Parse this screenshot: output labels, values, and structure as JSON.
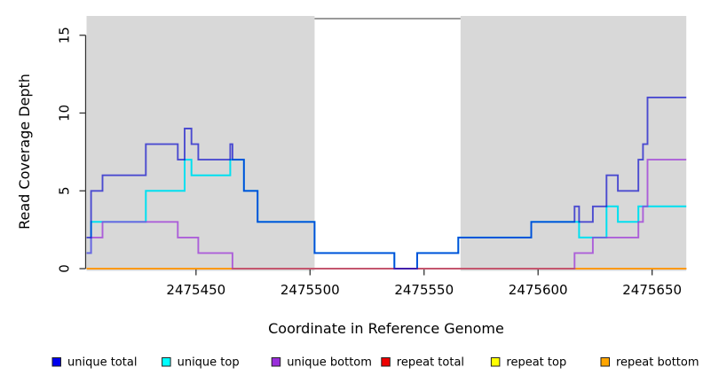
{
  "chart_data": {
    "type": "line",
    "style": "step",
    "xlabel": "Coordinate in Reference Genome",
    "ylabel": "Read Coverage Depth",
    "x_range": [
      2475402,
      2475665
    ],
    "y_range": [
      0,
      16.3
    ],
    "x_ticks": [
      2475450,
      2475500,
      2475550,
      2475600,
      2475650
    ],
    "x_tick_labels": [
      "2475450",
      "2475500",
      "2475550",
      "2475600",
      "2475650"
    ],
    "y_ticks": [
      0,
      5,
      10,
      15
    ],
    "y_tick_labels": [
      "0",
      "5",
      "10",
      "15"
    ],
    "grid": "off",
    "background_color": "#ffffff",
    "shaded_regions": [
      {
        "name": "left-gray-band",
        "from": 2475402,
        "to": 2475502,
        "color": "#d8d8d8"
      },
      {
        "name": "right-gray-band",
        "from": 2475566,
        "to": 2475665,
        "color": "#d8d8d8"
      }
    ],
    "gap_region": {
      "name": "white-gap",
      "from": 2475502,
      "to": 2475566,
      "top_line_color": "#9a9a9a"
    },
    "series": [
      {
        "name": "repeat top",
        "color": "#FFFF00",
        "opacity": 1,
        "width": 1.8,
        "steps": [
          [
            2475402,
            0
          ]
        ]
      },
      {
        "name": "repeat total",
        "color": "#DD2222",
        "opacity": 1,
        "width": 1.8,
        "steps": [
          [
            2475402,
            0
          ]
        ]
      },
      {
        "name": "repeat bottom",
        "color": "#FF9912",
        "opacity": 1,
        "width": 2,
        "steps": [
          [
            2475402,
            0
          ]
        ]
      },
      {
        "name": "unique top",
        "color": "#00E0F0",
        "opacity": 1,
        "width": 2,
        "steps": [
          [
            2475402,
            1
          ],
          [
            2475404,
            3
          ],
          [
            2475428,
            5
          ],
          [
            2475445,
            7
          ],
          [
            2475448,
            6
          ],
          [
            2475465,
            7
          ],
          [
            2475471,
            5
          ],
          [
            2475477,
            3
          ],
          [
            2475502,
            1
          ],
          [
            2475537,
            0
          ],
          [
            2475547,
            1
          ],
          [
            2475565,
            2
          ],
          [
            2475597,
            3
          ],
          [
            2475618,
            2
          ],
          [
            2475630,
            4
          ],
          [
            2475635,
            3
          ],
          [
            2475644,
            4
          ]
        ]
      },
      {
        "name": "unique bottom",
        "color": "#9B30D9",
        "opacity": 0.72,
        "width": 1.9,
        "steps": [
          [
            2475402,
            1
          ],
          [
            2475404,
            2
          ],
          [
            2475409,
            3
          ],
          [
            2475442,
            2
          ],
          [
            2475451,
            1
          ],
          [
            2475466,
            0
          ],
          [
            2475616,
            1
          ],
          [
            2475624,
            2
          ],
          [
            2475644,
            3
          ],
          [
            2475646,
            4
          ],
          [
            2475648,
            7
          ]
        ]
      },
      {
        "name": "baseline blend (repeat total over unique bottom at 0)",
        "color": "#C4566E",
        "opacity": 1,
        "width": 2,
        "steps": [
          [
            2475466,
            0
          ]
        ],
        "end": 2475616
      },
      {
        "name": "unique total",
        "color": "#0000CC",
        "opacity": 0.65,
        "width": 1.9,
        "steps": [
          [
            2475402,
            2
          ],
          [
            2475404,
            5
          ],
          [
            2475409,
            6
          ],
          [
            2475428,
            8
          ],
          [
            2475442,
            7
          ],
          [
            2475445,
            9
          ],
          [
            2475448,
            8
          ],
          [
            2475451,
            7
          ],
          [
            2475465,
            8
          ],
          [
            2475466,
            7
          ],
          [
            2475471,
            5
          ],
          [
            2475477,
            3
          ],
          [
            2475502,
            1
          ],
          [
            2475537,
            0
          ],
          [
            2475547,
            1
          ],
          [
            2475565,
            2
          ],
          [
            2475597,
            3
          ],
          [
            2475616,
            4
          ],
          [
            2475618,
            3
          ],
          [
            2475624,
            4
          ],
          [
            2475630,
            6
          ],
          [
            2475635,
            5
          ],
          [
            2475644,
            7
          ],
          [
            2475646,
            8
          ],
          [
            2475648,
            11
          ]
        ]
      }
    ],
    "legend": {
      "position": "bottom",
      "items": [
        {
          "label": "unique total",
          "color": "#0000EE"
        },
        {
          "label": "unique top",
          "color": "#00FFFF"
        },
        {
          "label": "unique bottom",
          "color": "#9A2EDB"
        },
        {
          "label": "repeat total",
          "color": "#EE0000"
        },
        {
          "label": "repeat top",
          "color": "#FFFF00"
        },
        {
          "label": "repeat bottom",
          "color": "#FFA500"
        }
      ]
    }
  }
}
